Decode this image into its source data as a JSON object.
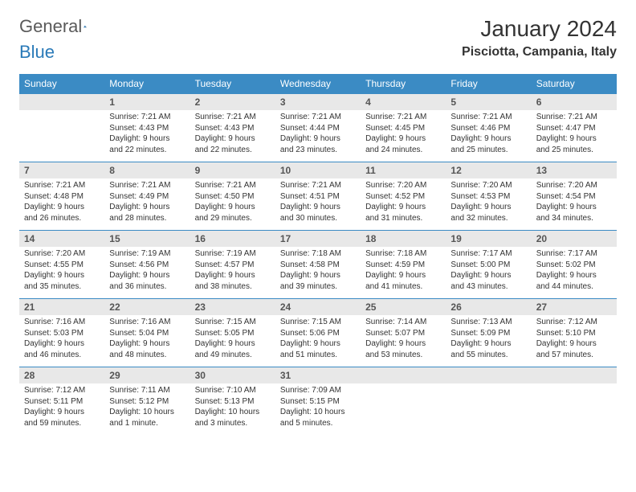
{
  "logo": {
    "gray": "General",
    "blue": "Blue"
  },
  "title": "January 2024",
  "location": "Pisciotta, Campania, Italy",
  "weekdays": [
    "Sunday",
    "Monday",
    "Tuesday",
    "Wednesday",
    "Thursday",
    "Friday",
    "Saturday"
  ],
  "colors": {
    "header_bg": "#3b8bc4",
    "header_text": "#ffffff",
    "daynum_bg": "#e8e8e8",
    "rule": "#3b8bc4",
    "body_text": "#333333",
    "logo_gray": "#5a5a5a",
    "logo_blue": "#2a7ab8"
  },
  "typography": {
    "title_fontsize": 28,
    "location_fontsize": 16,
    "location_weight": "bold",
    "weekday_fontsize": 12,
    "daynum_fontsize": 12,
    "daynum_weight": "bold",
    "cell_fontsize": 10
  },
  "layout": {
    "columns": 7,
    "rows": 5,
    "cell_min_height": 62
  },
  "weeks": [
    [
      {
        "n": "",
        "sunrise": "",
        "sunset": "",
        "daylight": ""
      },
      {
        "n": "1",
        "sunrise": "Sunrise: 7:21 AM",
        "sunset": "Sunset: 4:43 PM",
        "daylight": "Daylight: 9 hours and 22 minutes."
      },
      {
        "n": "2",
        "sunrise": "Sunrise: 7:21 AM",
        "sunset": "Sunset: 4:43 PM",
        "daylight": "Daylight: 9 hours and 22 minutes."
      },
      {
        "n": "3",
        "sunrise": "Sunrise: 7:21 AM",
        "sunset": "Sunset: 4:44 PM",
        "daylight": "Daylight: 9 hours and 23 minutes."
      },
      {
        "n": "4",
        "sunrise": "Sunrise: 7:21 AM",
        "sunset": "Sunset: 4:45 PM",
        "daylight": "Daylight: 9 hours and 24 minutes."
      },
      {
        "n": "5",
        "sunrise": "Sunrise: 7:21 AM",
        "sunset": "Sunset: 4:46 PM",
        "daylight": "Daylight: 9 hours and 25 minutes."
      },
      {
        "n": "6",
        "sunrise": "Sunrise: 7:21 AM",
        "sunset": "Sunset: 4:47 PM",
        "daylight": "Daylight: 9 hours and 25 minutes."
      }
    ],
    [
      {
        "n": "7",
        "sunrise": "Sunrise: 7:21 AM",
        "sunset": "Sunset: 4:48 PM",
        "daylight": "Daylight: 9 hours and 26 minutes."
      },
      {
        "n": "8",
        "sunrise": "Sunrise: 7:21 AM",
        "sunset": "Sunset: 4:49 PM",
        "daylight": "Daylight: 9 hours and 28 minutes."
      },
      {
        "n": "9",
        "sunrise": "Sunrise: 7:21 AM",
        "sunset": "Sunset: 4:50 PM",
        "daylight": "Daylight: 9 hours and 29 minutes."
      },
      {
        "n": "10",
        "sunrise": "Sunrise: 7:21 AM",
        "sunset": "Sunset: 4:51 PM",
        "daylight": "Daylight: 9 hours and 30 minutes."
      },
      {
        "n": "11",
        "sunrise": "Sunrise: 7:20 AM",
        "sunset": "Sunset: 4:52 PM",
        "daylight": "Daylight: 9 hours and 31 minutes."
      },
      {
        "n": "12",
        "sunrise": "Sunrise: 7:20 AM",
        "sunset": "Sunset: 4:53 PM",
        "daylight": "Daylight: 9 hours and 32 minutes."
      },
      {
        "n": "13",
        "sunrise": "Sunrise: 7:20 AM",
        "sunset": "Sunset: 4:54 PM",
        "daylight": "Daylight: 9 hours and 34 minutes."
      }
    ],
    [
      {
        "n": "14",
        "sunrise": "Sunrise: 7:20 AM",
        "sunset": "Sunset: 4:55 PM",
        "daylight": "Daylight: 9 hours and 35 minutes."
      },
      {
        "n": "15",
        "sunrise": "Sunrise: 7:19 AM",
        "sunset": "Sunset: 4:56 PM",
        "daylight": "Daylight: 9 hours and 36 minutes."
      },
      {
        "n": "16",
        "sunrise": "Sunrise: 7:19 AM",
        "sunset": "Sunset: 4:57 PM",
        "daylight": "Daylight: 9 hours and 38 minutes."
      },
      {
        "n": "17",
        "sunrise": "Sunrise: 7:18 AM",
        "sunset": "Sunset: 4:58 PM",
        "daylight": "Daylight: 9 hours and 39 minutes."
      },
      {
        "n": "18",
        "sunrise": "Sunrise: 7:18 AM",
        "sunset": "Sunset: 4:59 PM",
        "daylight": "Daylight: 9 hours and 41 minutes."
      },
      {
        "n": "19",
        "sunrise": "Sunrise: 7:17 AM",
        "sunset": "Sunset: 5:00 PM",
        "daylight": "Daylight: 9 hours and 43 minutes."
      },
      {
        "n": "20",
        "sunrise": "Sunrise: 7:17 AM",
        "sunset": "Sunset: 5:02 PM",
        "daylight": "Daylight: 9 hours and 44 minutes."
      }
    ],
    [
      {
        "n": "21",
        "sunrise": "Sunrise: 7:16 AM",
        "sunset": "Sunset: 5:03 PM",
        "daylight": "Daylight: 9 hours and 46 minutes."
      },
      {
        "n": "22",
        "sunrise": "Sunrise: 7:16 AM",
        "sunset": "Sunset: 5:04 PM",
        "daylight": "Daylight: 9 hours and 48 minutes."
      },
      {
        "n": "23",
        "sunrise": "Sunrise: 7:15 AM",
        "sunset": "Sunset: 5:05 PM",
        "daylight": "Daylight: 9 hours and 49 minutes."
      },
      {
        "n": "24",
        "sunrise": "Sunrise: 7:15 AM",
        "sunset": "Sunset: 5:06 PM",
        "daylight": "Daylight: 9 hours and 51 minutes."
      },
      {
        "n": "25",
        "sunrise": "Sunrise: 7:14 AM",
        "sunset": "Sunset: 5:07 PM",
        "daylight": "Daylight: 9 hours and 53 minutes."
      },
      {
        "n": "26",
        "sunrise": "Sunrise: 7:13 AM",
        "sunset": "Sunset: 5:09 PM",
        "daylight": "Daylight: 9 hours and 55 minutes."
      },
      {
        "n": "27",
        "sunrise": "Sunrise: 7:12 AM",
        "sunset": "Sunset: 5:10 PM",
        "daylight": "Daylight: 9 hours and 57 minutes."
      }
    ],
    [
      {
        "n": "28",
        "sunrise": "Sunrise: 7:12 AM",
        "sunset": "Sunset: 5:11 PM",
        "daylight": "Daylight: 9 hours and 59 minutes."
      },
      {
        "n": "29",
        "sunrise": "Sunrise: 7:11 AM",
        "sunset": "Sunset: 5:12 PM",
        "daylight": "Daylight: 10 hours and 1 minute."
      },
      {
        "n": "30",
        "sunrise": "Sunrise: 7:10 AM",
        "sunset": "Sunset: 5:13 PM",
        "daylight": "Daylight: 10 hours and 3 minutes."
      },
      {
        "n": "31",
        "sunrise": "Sunrise: 7:09 AM",
        "sunset": "Sunset: 5:15 PM",
        "daylight": "Daylight: 10 hours and 5 minutes."
      },
      {
        "n": "",
        "sunrise": "",
        "sunset": "",
        "daylight": ""
      },
      {
        "n": "",
        "sunrise": "",
        "sunset": "",
        "daylight": ""
      },
      {
        "n": "",
        "sunrise": "",
        "sunset": "",
        "daylight": ""
      }
    ]
  ]
}
